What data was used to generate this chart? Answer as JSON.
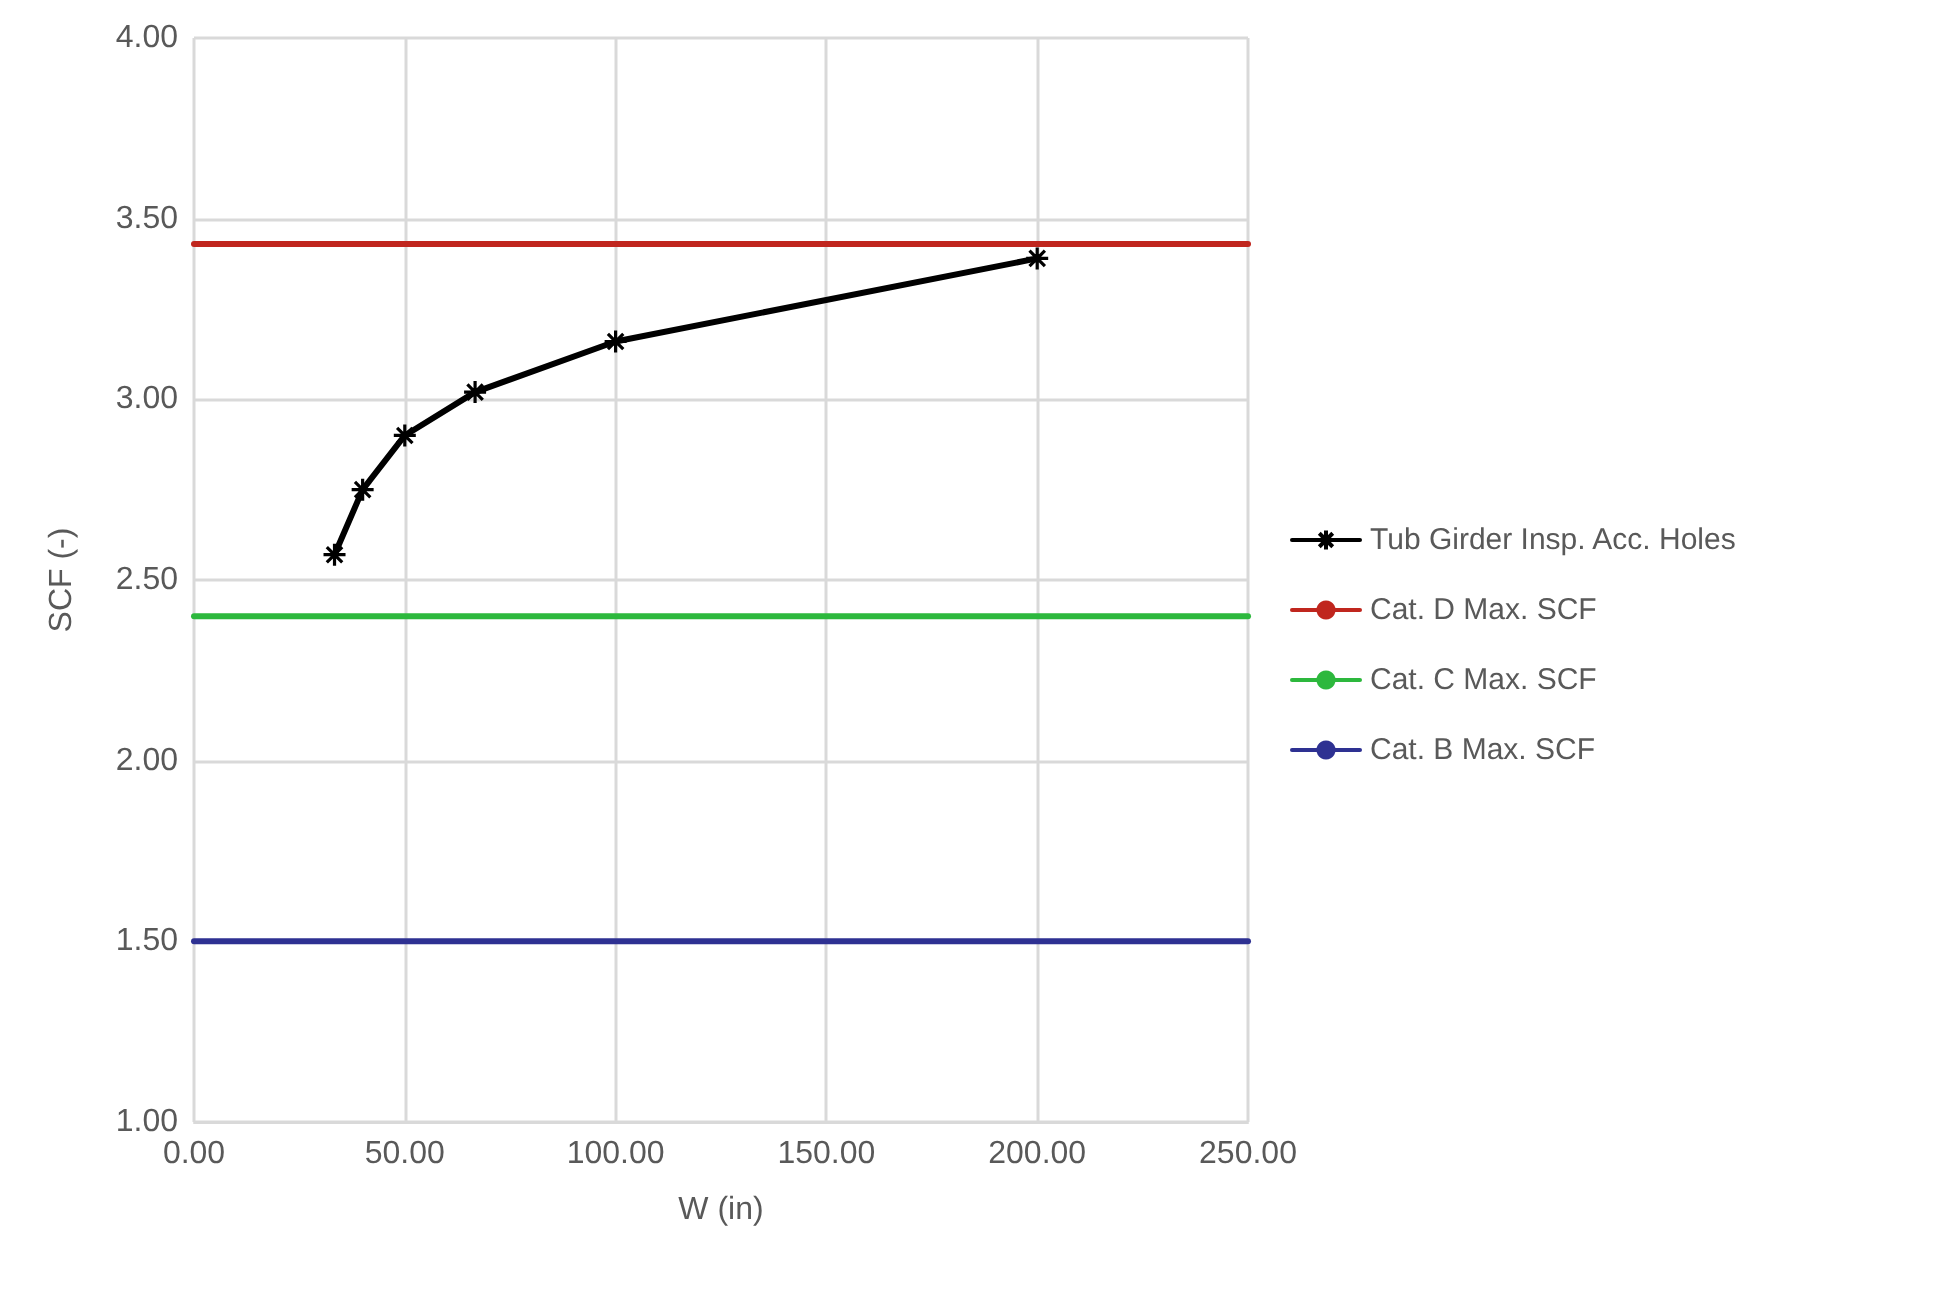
{
  "chart_data": {
    "type": "line",
    "xlabel": "W (in)",
    "ylabel": "SCF (-)",
    "xlim": [
      0,
      250
    ],
    "xticks": [
      {
        "value": 0,
        "label": "0.00"
      },
      {
        "value": 50,
        "label": "50.00"
      },
      {
        "value": 100,
        "label": "100.00"
      },
      {
        "value": 150,
        "label": "150.00"
      },
      {
        "value": 200,
        "label": "200.00"
      },
      {
        "value": 250,
        "label": "250.00"
      }
    ],
    "ylim": [
      1,
      4
    ],
    "yticks": [
      {
        "value": 1,
        "label": "1.00"
      },
      {
        "value": 1.5,
        "label": "1.50"
      },
      {
        "value": 2,
        "label": "2.00"
      },
      {
        "value": 2.5,
        "label": "2.50"
      },
      {
        "value": 3,
        "label": "3.00"
      },
      {
        "value": 3.5,
        "label": "3.50"
      },
      {
        "value": 4,
        "label": "4.00"
      }
    ],
    "grid": true,
    "legend": "right",
    "series": [
      {
        "name": "Tub Girder Insp. Acc. Holes",
        "color": "#000000",
        "marker": "cross",
        "x": [
          33.33,
          40,
          50,
          66.67,
          100,
          200
        ],
        "values": [
          2.57,
          2.75,
          2.9,
          3.02,
          3.16,
          3.39
        ]
      },
      {
        "name": "Cat. D Max. SCF",
        "color": "#c0261e",
        "marker": "none",
        "x": [
          0,
          250
        ],
        "values": [
          3.43,
          3.43
        ]
      },
      {
        "name": "Cat. C Max. SCF",
        "color": "#2db83d",
        "marker": "none",
        "x": [
          0,
          250
        ],
        "values": [
          2.4,
          2.4
        ]
      },
      {
        "name": "Cat. B Max. SCF",
        "color": "#2e3192",
        "marker": "none",
        "x": [
          0,
          250
        ],
        "values": [
          1.5,
          1.5
        ]
      }
    ]
  }
}
